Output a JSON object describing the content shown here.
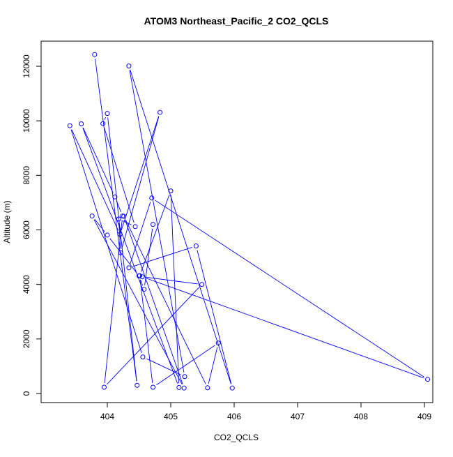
{
  "chart_data": {
    "type": "line",
    "title": "ATOM3 Northeast_Pacific_2 CO2_QCLS",
    "xlabel": "CO2_QCLS",
    "ylabel": "Altitude (m)",
    "xlim": [
      404,
      409
    ],
    "ylim": [
      0,
      12000
    ],
    "x_ticks": [
      404,
      405,
      406,
      407,
      408,
      409
    ],
    "y_ticks": [
      0,
      2000,
      4000,
      6000,
      8000,
      10000,
      12000
    ],
    "x_tick_labels": [
      "404",
      "405",
      "406",
      "407",
      "408",
      "409"
    ],
    "y_tick_labels": [
      "0",
      "2000",
      "4000",
      "6000",
      "8000",
      "10000",
      "12000"
    ],
    "grid": false,
    "series_color": "#0000ff",
    "marker": "open-circle",
    "x": [
      403.8,
      404.47,
      404.0,
      403.93,
      404.44,
      404.18,
      404.21,
      404.83,
      404.2,
      403.41,
      404.56,
      405.22,
      404.34,
      405.97,
      405.4,
      404.34,
      404.7,
      409.05,
      404.55,
      405.49,
      403.95,
      404.24,
      404.12,
      403.59,
      405.13,
      405.0,
      404.51,
      404.72,
      405.75,
      405.58,
      404.26,
      405.21,
      403.76,
      404.0,
      404.5,
      404.58,
      404.72
    ],
    "y": [
      12430,
      300,
      10270,
      9900,
      6120,
      6400,
      5160,
      10310,
      5840,
      9820,
      1340,
      620,
      12010,
      200,
      5410,
      4610,
      7170,
      520,
      4280,
      4000,
      230,
      6510,
      7210,
      9890,
      220,
      7430,
      4320,
      230,
      1850,
      210,
      6500,
      200,
      6510,
      5810,
      4310,
      3820,
      6200
    ]
  }
}
